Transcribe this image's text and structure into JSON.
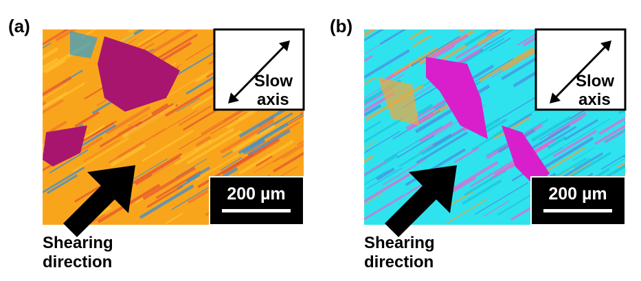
{
  "panels": [
    {
      "label": "(a)",
      "slow_axis": [
        "Slow",
        "axis"
      ],
      "scale_bar": "200 µm",
      "shear_label": [
        "Shearing",
        "direction"
      ]
    },
    {
      "label": "(b)",
      "slow_axis": [
        "Slow",
        "axis"
      ],
      "scale_bar": "200 µm",
      "shear_label": [
        "Shearing",
        "direction"
      ]
    }
  ]
}
